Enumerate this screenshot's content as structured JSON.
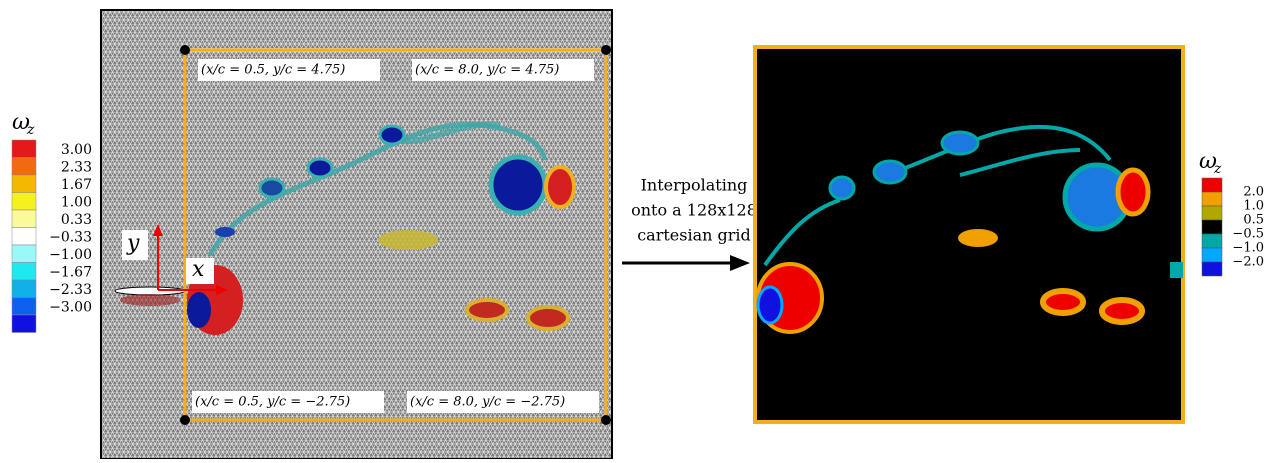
{
  "left_colorbar": {
    "symbol": "ω",
    "subscript": "z",
    "labels": [
      "3.00",
      "2.33",
      "1.67",
      "1.00",
      "0.33",
      "−0.33",
      "−1.00",
      "−1.67",
      "−2.33",
      "−3.00"
    ]
  },
  "mesh_panel": {
    "corner_labels": [
      "(x/c = 0.5, y/c = 4.75)",
      "(x/c = 8.0, y/c = 4.75)",
      "(x/c = 0.5, y/c = −2.75)",
      "(x/c = 8.0, y/c = −2.75)"
    ],
    "x_axis": "x",
    "y_axis": "y"
  },
  "arrow_text": [
    "Interpolating",
    "onto a 128x128",
    "cartesian grid"
  ],
  "right_colorbar": {
    "symbol": "ω",
    "subscript": "z",
    "labels": [
      "2.0",
      "1.0",
      "0.5",
      "−0.5",
      "−1.0",
      "−2.0"
    ]
  }
}
